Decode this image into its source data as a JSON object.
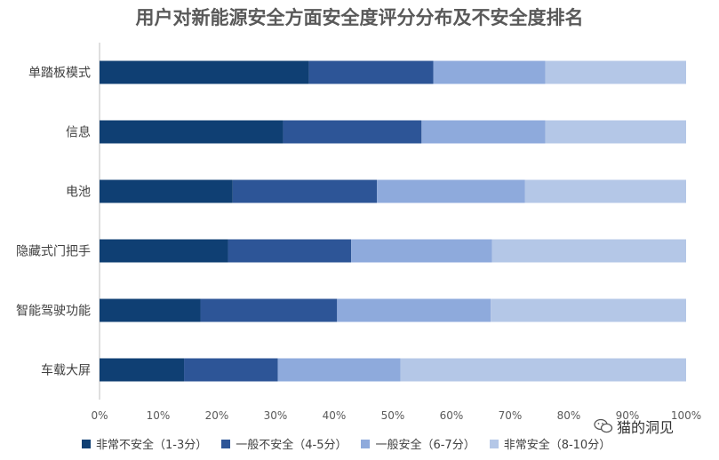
{
  "chart_data": {
    "type": "bar",
    "orientation": "horizontal",
    "stacked": true,
    "title": "用户对新能源安全方面安全度评分分布及不安全度排名",
    "categories": [
      "单踏板模式",
      "信息",
      "电池",
      "隐藏式门把手",
      "智能驾驶功能",
      "车载大屏"
    ],
    "series": [
      {
        "name": "非常不安全（1-3分）",
        "color": "#0f3f73",
        "values": [
          35.7,
          31.3,
          22.7,
          21.9,
          17.2,
          14.4
        ]
      },
      {
        "name": "一般不安全（4-5分）",
        "color": "#2d5597",
        "values": [
          21.2,
          23.6,
          24.6,
          21.0,
          23.3,
          16.0
        ]
      },
      {
        "name": "一般安全（6-7分）",
        "color": "#8eaadc",
        "values": [
          19.1,
          21.1,
          25.2,
          24.0,
          26.2,
          20.9
        ]
      },
      {
        "name": "非常安全（8-10分）",
        "color": "#b4c7e7",
        "values": [
          24.0,
          24.0,
          27.5,
          33.1,
          33.3,
          48.7
        ]
      }
    ],
    "xlim": [
      0,
      100
    ],
    "xticks": [
      "0%",
      "10%",
      "20%",
      "30%",
      "40%",
      "50%",
      "60%",
      "70%",
      "80%",
      "90%",
      "100%"
    ],
    "xlabel": "",
    "ylabel": "",
    "grid": false,
    "legend": "bottom"
  },
  "watermark": {
    "text": "猫的洞见",
    "icon": "wechat-icon"
  }
}
